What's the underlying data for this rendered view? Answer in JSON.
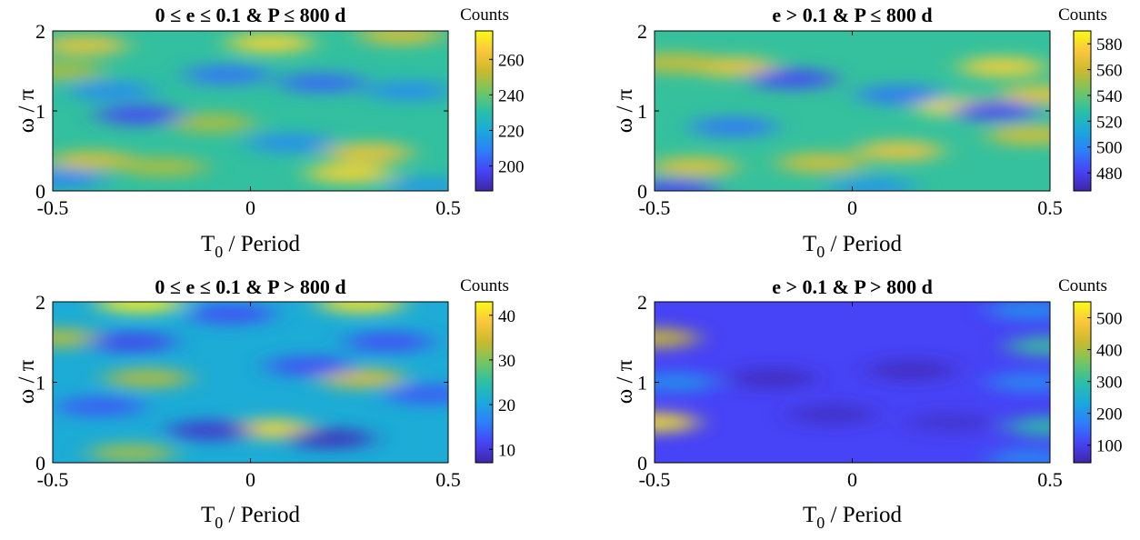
{
  "chart_data": [
    {
      "type": "heatmap",
      "title": "0 ≤ e ≤ 0.1 & P ≤ 800 d",
      "xlabel": "T₀ / Period",
      "ylabel": "ω / π",
      "xlim": [
        -0.5,
        0.5
      ],
      "ylim": [
        0,
        2
      ],
      "xticks": [
        "-0.5",
        "0",
        "0.5"
      ],
      "yticks": [
        "0",
        "1",
        "2"
      ],
      "colorbar": {
        "label": "Counts",
        "range": [
          186,
          276
        ],
        "ticks": [
          "200",
          "220",
          "240",
          "260"
        ],
        "tick_values": [
          200,
          220,
          240,
          260
        ]
      },
      "base_value": 232,
      "features": [
        {
          "x": -0.42,
          "y": 1.82,
          "value": 262
        },
        {
          "x": 0.05,
          "y": 1.85,
          "value": 268
        },
        {
          "x": 0.38,
          "y": 1.95,
          "value": 258
        },
        {
          "x": -0.4,
          "y": 0.38,
          "value": 258
        },
        {
          "x": -0.22,
          "y": 0.3,
          "value": 250
        },
        {
          "x": 0.25,
          "y": 0.22,
          "value": 268
        },
        {
          "x": 0.3,
          "y": 0.48,
          "value": 262
        },
        {
          "x": -0.48,
          "y": 1.5,
          "value": 250
        },
        {
          "x": -0.1,
          "y": 0.85,
          "value": 250
        },
        {
          "x": -0.28,
          "y": 0.95,
          "value": 198
        },
        {
          "x": -0.06,
          "y": 1.45,
          "value": 206
        },
        {
          "x": 0.18,
          "y": 1.35,
          "value": 204
        },
        {
          "x": -0.35,
          "y": 1.25,
          "value": 212
        },
        {
          "x": 0.4,
          "y": 1.25,
          "value": 212
        },
        {
          "x": 0.1,
          "y": 0.6,
          "value": 212
        },
        {
          "x": -0.48,
          "y": 0.15,
          "value": 210
        },
        {
          "x": 0.45,
          "y": 0.05,
          "value": 215
        }
      ]
    },
    {
      "type": "heatmap",
      "title": "e > 0.1 & P ≤ 800 d",
      "xlabel": "T₀ / Period",
      "ylabel": "ω / π",
      "xlim": [
        -0.5,
        0.5
      ],
      "ylim": [
        0,
        2
      ],
      "xticks": [
        "-0.5",
        "0",
        "0.5"
      ],
      "yticks": [
        "0",
        "1",
        "2"
      ],
      "colorbar": {
        "label": "Counts",
        "range": [
          466,
          590
        ],
        "ticks": [
          "480",
          "500",
          "520",
          "540",
          "560",
          "580"
        ],
        "tick_values": [
          480,
          500,
          520,
          540,
          560,
          580
        ]
      },
      "base_value": 530,
      "features": [
        {
          "x": -0.3,
          "y": 1.55,
          "value": 572
        },
        {
          "x": 0.38,
          "y": 1.55,
          "value": 578
        },
        {
          "x": 0.27,
          "y": 1.05,
          "value": 582
        },
        {
          "x": 0.12,
          "y": 0.5,
          "value": 572
        },
        {
          "x": -0.4,
          "y": 0.3,
          "value": 568
        },
        {
          "x": -0.08,
          "y": 0.35,
          "value": 565
        },
        {
          "x": 0.45,
          "y": 0.7,
          "value": 565
        },
        {
          "x": 0.48,
          "y": 1.2,
          "value": 570
        },
        {
          "x": -0.45,
          "y": 1.6,
          "value": 562
        },
        {
          "x": -0.15,
          "y": 1.4,
          "value": 482
        },
        {
          "x": 0.36,
          "y": 1.0,
          "value": 482
        },
        {
          "x": -0.45,
          "y": 0.02,
          "value": 480
        },
        {
          "x": 0.12,
          "y": 1.2,
          "value": 495
        },
        {
          "x": -0.3,
          "y": 0.8,
          "value": 495
        },
        {
          "x": 0.05,
          "y": 0.05,
          "value": 505
        }
      ]
    },
    {
      "type": "heatmap",
      "title": "0 ≤ e ≤ 0.1 & P > 800 d",
      "xlabel": "T₀ / Period",
      "ylabel": "ω / π",
      "xlim": [
        -0.5,
        0.5
      ],
      "ylim": [
        0,
        2
      ],
      "xticks": [
        "-0.5",
        "0",
        "0.5"
      ],
      "yticks": [
        "0",
        "1",
        "2"
      ],
      "colorbar": {
        "label": "Counts",
        "range": [
          7,
          43
        ],
        "ticks": [
          "10",
          "20",
          "30",
          "40"
        ],
        "tick_values": [
          10,
          20,
          30,
          40
        ]
      },
      "base_value": 21,
      "features": [
        {
          "x": -0.28,
          "y": 1.98,
          "value": 42
        },
        {
          "x": 0.28,
          "y": 1.98,
          "value": 41
        },
        {
          "x": 0.05,
          "y": 0.42,
          "value": 40
        },
        {
          "x": 0.28,
          "y": 1.05,
          "value": 36
        },
        {
          "x": -0.48,
          "y": 1.55,
          "value": 33
        },
        {
          "x": -0.26,
          "y": 1.05,
          "value": 33
        },
        {
          "x": -0.3,
          "y": 0.12,
          "value": 32
        },
        {
          "x": 0.2,
          "y": 0.3,
          "value": 8
        },
        {
          "x": -0.1,
          "y": 0.4,
          "value": 9
        },
        {
          "x": -0.3,
          "y": 1.5,
          "value": 11
        },
        {
          "x": 0.35,
          "y": 1.5,
          "value": 12
        },
        {
          "x": -0.05,
          "y": 1.85,
          "value": 12
        },
        {
          "x": 0.15,
          "y": 1.2,
          "value": 12
        },
        {
          "x": -0.38,
          "y": 0.7,
          "value": 13
        },
        {
          "x": 0.45,
          "y": 0.85,
          "value": 13
        }
      ]
    },
    {
      "type": "heatmap",
      "title": "e > 0.1 & P > 800 d",
      "xlabel": "T₀ / Period",
      "ylabel": "ω / π",
      "xlim": [
        -0.5,
        0.5
      ],
      "ylim": [
        0,
        2
      ],
      "xticks": [
        "-0.5",
        "0",
        "0.5"
      ],
      "yticks": [
        "0",
        "1",
        "2"
      ],
      "colorbar": {
        "label": "Counts",
        "range": [
          45,
          550
        ],
        "ticks": [
          "100",
          "200",
          "300",
          "400",
          "500"
        ],
        "tick_values": [
          100,
          200,
          300,
          400,
          500
        ]
      },
      "base_value": 108,
      "features": [
        {
          "x": -0.5,
          "y": 0.5,
          "value": 520
        },
        {
          "x": -0.5,
          "y": 1.55,
          "value": 430
        },
        {
          "x": 0.5,
          "y": 0.45,
          "value": 300
        },
        {
          "x": 0.5,
          "y": 1.45,
          "value": 310
        },
        {
          "x": -0.45,
          "y": 1.0,
          "value": 200
        },
        {
          "x": 0.45,
          "y": 1.0,
          "value": 190
        },
        {
          "x": 0.45,
          "y": 1.9,
          "value": 200
        },
        {
          "x": 0.45,
          "y": 0.05,
          "value": 190
        },
        {
          "x": -0.2,
          "y": 1.05,
          "value": 62
        },
        {
          "x": 0.15,
          "y": 1.15,
          "value": 60
        },
        {
          "x": -0.05,
          "y": 0.6,
          "value": 68
        },
        {
          "x": 0.25,
          "y": 0.5,
          "value": 75
        }
      ]
    }
  ]
}
